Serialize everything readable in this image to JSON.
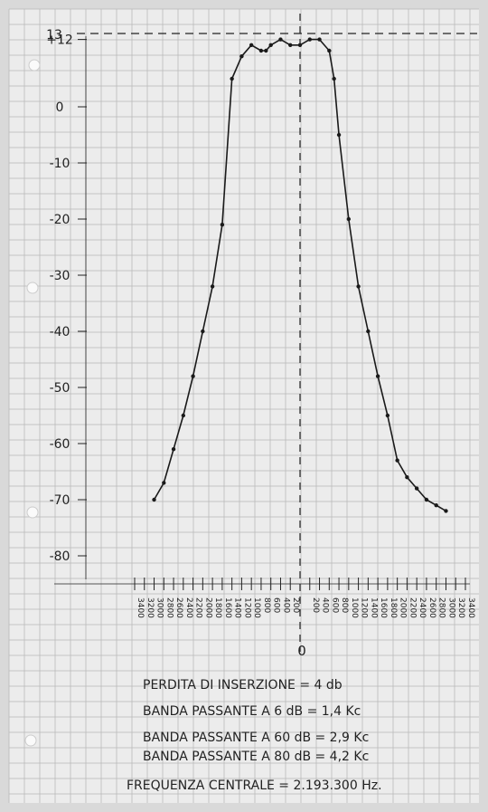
{
  "chart_data": {
    "type": "line",
    "ylabel": "",
    "xlabel": "",
    "yticks": [
      "13",
      "+12",
      "0",
      "-10",
      "-20",
      "-30",
      "-40",
      "-50",
      "-60",
      "-70",
      "-80"
    ],
    "xticks_left": [
      "3400",
      "3200",
      "3000",
      "2800",
      "2600",
      "2400",
      "2200",
      "2000",
      "1800",
      "1600",
      "1400",
      "1200",
      "1000",
      "800",
      "600",
      "400",
      "200"
    ],
    "xticks_right": [
      "200",
      "400",
      "600",
      "800",
      "1000",
      "1200",
      "1400",
      "1600",
      "1800",
      "2000",
      "2200",
      "2400",
      "2600",
      "2800",
      "3000",
      "3200",
      "3400"
    ],
    "center_label": "0",
    "reference_level": 13,
    "series": [
      {
        "x": [
          -3000,
          -2800,
          -2600,
          -2400,
          -2200,
          -2000,
          -1800,
          -1600,
          -1400,
          -1200,
          -1000,
          -800,
          -700,
          -600,
          -400,
          -200,
          0,
          200,
          400,
          600,
          700,
          800,
          1000,
          1200,
          1400,
          1600,
          1800,
          2000,
          2200,
          2400,
          2600,
          2800,
          3000
        ],
        "y": [
          -70,
          -67,
          -61,
          -55,
          -48,
          -40,
          -32,
          -21,
          5,
          9,
          11,
          10,
          10,
          11,
          12,
          11,
          11,
          12,
          12,
          10,
          5,
          -5,
          -20,
          -32,
          -40,
          -48,
          -55,
          -63,
          -66,
          -68,
          -70,
          -71,
          -72
        ]
      }
    ],
    "ylim": [
      -85,
      15
    ],
    "xlim": [
      -3400,
      3400
    ]
  },
  "notes": {
    "line1": "PERDITA DI INSERZIONE   = 4 db",
    "line2": "BANDA PASSANTE A 6 dB  = 1,4 Kc",
    "line3": "BANDA PASSANTE A 60 dB = 2,9 Kc",
    "line4": "BANDA PASSANTE A 80 dB = 4,2 Kc",
    "line5": "FREQUENZA CENTRALE = 2.193.300 Hz."
  },
  "colors": {
    "paper": "#ececec",
    "grid": "#b9b9b9",
    "ink": "#1a1a1a"
  }
}
